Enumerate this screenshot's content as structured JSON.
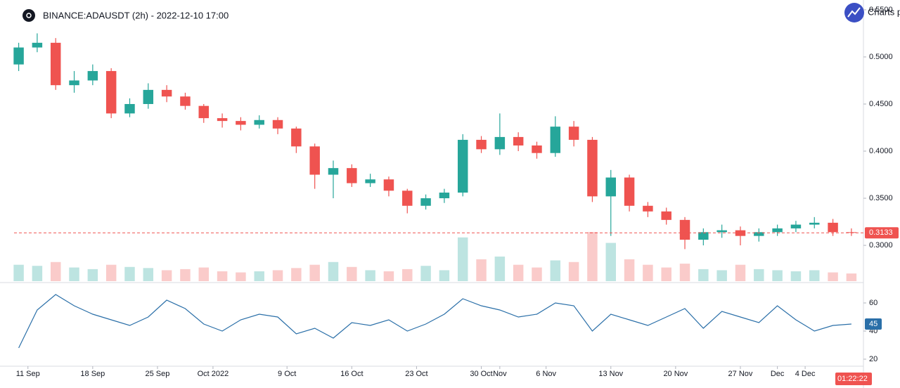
{
  "title": "BINANCE:ADAUSDT (2h) - 2022-12-10 17:00",
  "watermark": "Charts p",
  "countdown": "01:22:22",
  "chart_data": [
    {
      "type": "candlestick",
      "x": [
        10,
        12,
        14,
        16,
        18,
        20,
        22,
        24,
        26,
        28,
        30,
        32,
        34,
        36,
        38,
        40,
        42,
        44,
        46,
        48,
        50,
        52,
        54,
        56,
        58,
        60,
        62,
        64,
        66,
        68,
        70,
        72,
        74,
        76,
        78,
        80,
        82,
        84,
        86,
        88,
        90,
        92,
        94,
        96,
        98,
        100
      ],
      "open": [
        0.492,
        0.51,
        0.515,
        0.47,
        0.475,
        0.485,
        0.44,
        0.45,
        0.465,
        0.458,
        0.448,
        0.435,
        0.432,
        0.428,
        0.433,
        0.424,
        0.405,
        0.375,
        0.382,
        0.366,
        0.37,
        0.358,
        0.342,
        0.35,
        0.356,
        0.412,
        0.402,
        0.415,
        0.406,
        0.398,
        0.426,
        0.412,
        0.352,
        0.372,
        0.342,
        0.336,
        0.327,
        0.306,
        0.314,
        0.316,
        0.31,
        0.314,
        0.318,
        0.322,
        0.324,
        0.314
      ],
      "high": [
        0.515,
        0.525,
        0.52,
        0.485,
        0.492,
        0.488,
        0.456,
        0.472,
        0.47,
        0.462,
        0.45,
        0.44,
        0.436,
        0.438,
        0.436,
        0.426,
        0.408,
        0.39,
        0.386,
        0.376,
        0.373,
        0.36,
        0.354,
        0.36,
        0.418,
        0.416,
        0.44,
        0.42,
        0.41,
        0.437,
        0.432,
        0.415,
        0.38,
        0.375,
        0.346,
        0.34,
        0.33,
        0.318,
        0.322,
        0.32,
        0.318,
        0.322,
        0.326,
        0.33,
        0.328,
        0.318
      ],
      "low": [
        0.485,
        0.505,
        0.465,
        0.462,
        0.47,
        0.435,
        0.436,
        0.445,
        0.452,
        0.444,
        0.43,
        0.425,
        0.422,
        0.424,
        0.418,
        0.398,
        0.36,
        0.35,
        0.362,
        0.362,
        0.352,
        0.334,
        0.338,
        0.345,
        0.352,
        0.398,
        0.396,
        0.4,
        0.392,
        0.394,
        0.405,
        0.346,
        0.31,
        0.336,
        0.33,
        0.322,
        0.296,
        0.3,
        0.308,
        0.3,
        0.304,
        0.31,
        0.314,
        0.318,
        0.31,
        0.31
      ],
      "close": [
        0.51,
        0.515,
        0.47,
        0.475,
        0.485,
        0.44,
        0.45,
        0.465,
        0.458,
        0.448,
        0.435,
        0.432,
        0.428,
        0.433,
        0.424,
        0.405,
        0.375,
        0.382,
        0.366,
        0.37,
        0.358,
        0.342,
        0.35,
        0.356,
        0.412,
        0.402,
        0.415,
        0.406,
        0.398,
        0.426,
        0.412,
        0.352,
        0.372,
        0.342,
        0.336,
        0.327,
        0.306,
        0.314,
        0.316,
        0.31,
        0.314,
        0.318,
        0.322,
        0.324,
        0.314,
        0.3133
      ],
      "volume": [
        30,
        28,
        35,
        25,
        22,
        30,
        26,
        24,
        20,
        22,
        25,
        18,
        16,
        18,
        20,
        24,
        30,
        35,
        26,
        20,
        18,
        22,
        28,
        20,
        80,
        40,
        45,
        30,
        25,
        38,
        35,
        90,
        70,
        40,
        30,
        25,
        32,
        22,
        20,
        30,
        22,
        20,
        18,
        20,
        16,
        14
      ],
      "up_color": "#26a69a",
      "down_color": "#ef5350",
      "last_price": 0.3133,
      "ylim": [
        0.262,
        0.5604
      ],
      "yticks": [
        {
          "value": 0.3,
          "label": "0.3000"
        },
        {
          "value": 0.35,
          "label": "0.3500"
        },
        {
          "value": 0.4,
          "label": "0.4000"
        },
        {
          "value": 0.45,
          "label": "0.4500"
        },
        {
          "value": 0.5,
          "label": "0.5000"
        },
        {
          "value": 0.55,
          "label": "0.5500"
        }
      ],
      "xlim": [
        9.5,
        101.3
      ],
      "xticks": [
        {
          "value": 11,
          "label": "11 Sep"
        },
        {
          "value": 18,
          "label": "18 Sep"
        },
        {
          "value": 25,
          "label": "25 Sep"
        },
        {
          "value": 31,
          "label": "Oct 2022"
        },
        {
          "value": 39,
          "label": "9 Oct"
        },
        {
          "value": 46,
          "label": "16 Oct"
        },
        {
          "value": 53,
          "label": "23 Oct"
        },
        {
          "value": 60,
          "label": "30 Oct"
        },
        {
          "value": 62,
          "label": "Nov"
        },
        {
          "value": 67,
          "label": "6 Nov"
        },
        {
          "value": 74,
          "label": "13 Nov"
        },
        {
          "value": 81,
          "label": "20 Nov"
        },
        {
          "value": 88,
          "label": "27 Nov"
        },
        {
          "value": 92,
          "label": "Dec"
        },
        {
          "value": 95,
          "label": "4 Dec"
        }
      ]
    },
    {
      "type": "line",
      "color": "#2a6fa8",
      "values": [
        28,
        55,
        66,
        58,
        52,
        48,
        44,
        50,
        62,
        56,
        45,
        40,
        48,
        52,
        50,
        38,
        42,
        35,
        46,
        44,
        48,
        40,
        45,
        52,
        63,
        58,
        55,
        50,
        52,
        60,
        58,
        40,
        52,
        48,
        44,
        50,
        56,
        42,
        54,
        50,
        46,
        58,
        48,
        40,
        44,
        45
      ],
      "last_value": 45,
      "ylim": [
        15.5,
        73
      ],
      "yticks": [
        20,
        40,
        60
      ]
    }
  ]
}
